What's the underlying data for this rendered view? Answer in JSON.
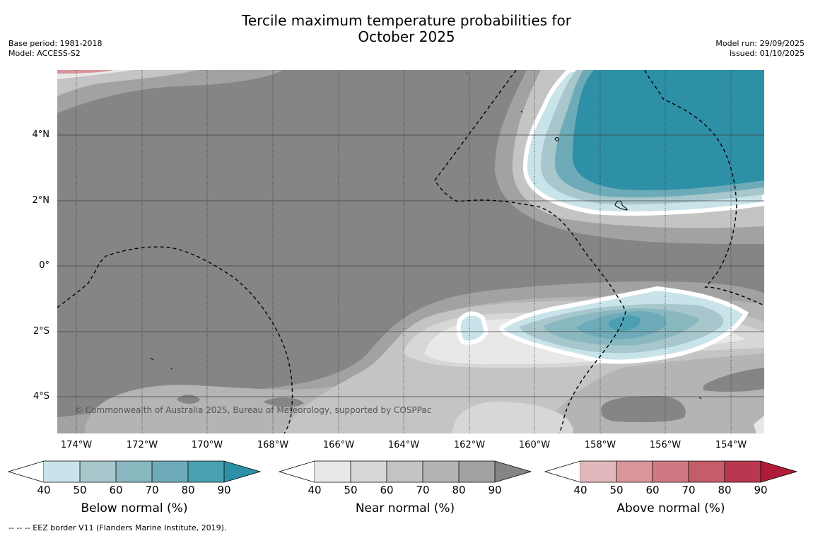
{
  "title_line1": "Tercile maximum temperature probabilities for",
  "title_line2": "October 2025",
  "base_period": "Base period: 1981-2018",
  "model": "Model: ACCESS-S2",
  "model_run": "Model run: 29/09/2025",
  "issued": "Issued: 01/10/2025",
  "credit": "© Commonwealth of Australia 2025, Bureau of Meteorology, supported by COSPPac",
  "footnote": "--  --  -- EEZ border V11 (Flanders Marine Institute, 2019).",
  "lat_labels": [
    "4°N",
    "2°N",
    "0°",
    "2°S",
    "4°S"
  ],
  "lon_labels": [
    "174°W",
    "172°W",
    "170°W",
    "168°W",
    "166°W",
    "164°W",
    "162°W",
    "160°W",
    "158°W",
    "156°W",
    "154°W"
  ],
  "colorbars": [
    {
      "title": "Below normal (%)",
      "ticks": [
        "40",
        "50",
        "60",
        "70",
        "80",
        "90"
      ],
      "colors": [
        "#c9e3ea",
        "#a8c7cc",
        "#8ab8c0",
        "#6eabb8",
        "#4a9fb1",
        "#2e90a6"
      ]
    },
    {
      "title": "Near normal (%)",
      "ticks": [
        "40",
        "50",
        "60",
        "70",
        "80",
        "90"
      ],
      "colors": [
        "#e8e8e8",
        "#d7d7d7",
        "#c4c4c4",
        "#b4b4b4",
        "#a2a2a2",
        "#858585"
      ]
    },
    {
      "title": "Above normal (%)",
      "ticks": [
        "40",
        "50",
        "60",
        "70",
        "80",
        "90"
      ],
      "colors": [
        "#e2b8bd",
        "#d8959c",
        "#cf7a83",
        "#c45d69",
        "#ba3750",
        "#b01c38"
      ]
    }
  ]
}
